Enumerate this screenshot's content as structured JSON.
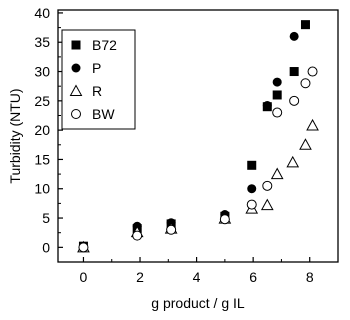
{
  "chart_data": {
    "type": "scatter",
    "xlabel": "g product / g IL",
    "ylabel": "Turbidity (NTU)",
    "xlim": [
      -0.9,
      9.0
    ],
    "ylim": [
      -2.5,
      40.5
    ],
    "xticks": [
      0,
      2,
      4,
      6,
      8
    ],
    "yticks": [
      0,
      5,
      10,
      15,
      20,
      25,
      30,
      35,
      40
    ],
    "legend_position": "top-left",
    "grid": false,
    "series": [
      {
        "name": "B72",
        "marker": "filled-square",
        "x": [
          0,
          1.9,
          3.1,
          5.0,
          5.95,
          6.5,
          6.85,
          7.45,
          7.85
        ],
        "y": [
          0.2,
          3.2,
          4.0,
          5.3,
          14.0,
          24.0,
          26.0,
          30.0,
          38.0
        ]
      },
      {
        "name": "P",
        "marker": "filled-circle",
        "x": [
          0,
          1.9,
          3.1,
          5.0,
          5.95,
          6.5,
          6.85,
          7.45
        ],
        "y": [
          0.1,
          3.6,
          4.2,
          5.6,
          10.0,
          24.2,
          28.2,
          36.0
        ]
      },
      {
        "name": "R",
        "marker": "open-triangle",
        "x": [
          0,
          1.9,
          3.1,
          5.0,
          5.95,
          6.5,
          6.85,
          7.4,
          7.85,
          8.1
        ],
        "y": [
          0.0,
          2.6,
          3.2,
          4.9,
          6.6,
          7.2,
          12.5,
          14.5,
          17.5,
          20.8
        ]
      },
      {
        "name": "BW",
        "marker": "open-circle",
        "x": [
          0,
          1.9,
          3.1,
          5.0,
          5.95,
          6.5,
          6.85,
          7.45,
          7.85,
          8.1
        ],
        "y": [
          0.0,
          2.0,
          3.0,
          4.8,
          7.3,
          10.5,
          23.0,
          25.0,
          28.0,
          30.0
        ]
      }
    ]
  }
}
